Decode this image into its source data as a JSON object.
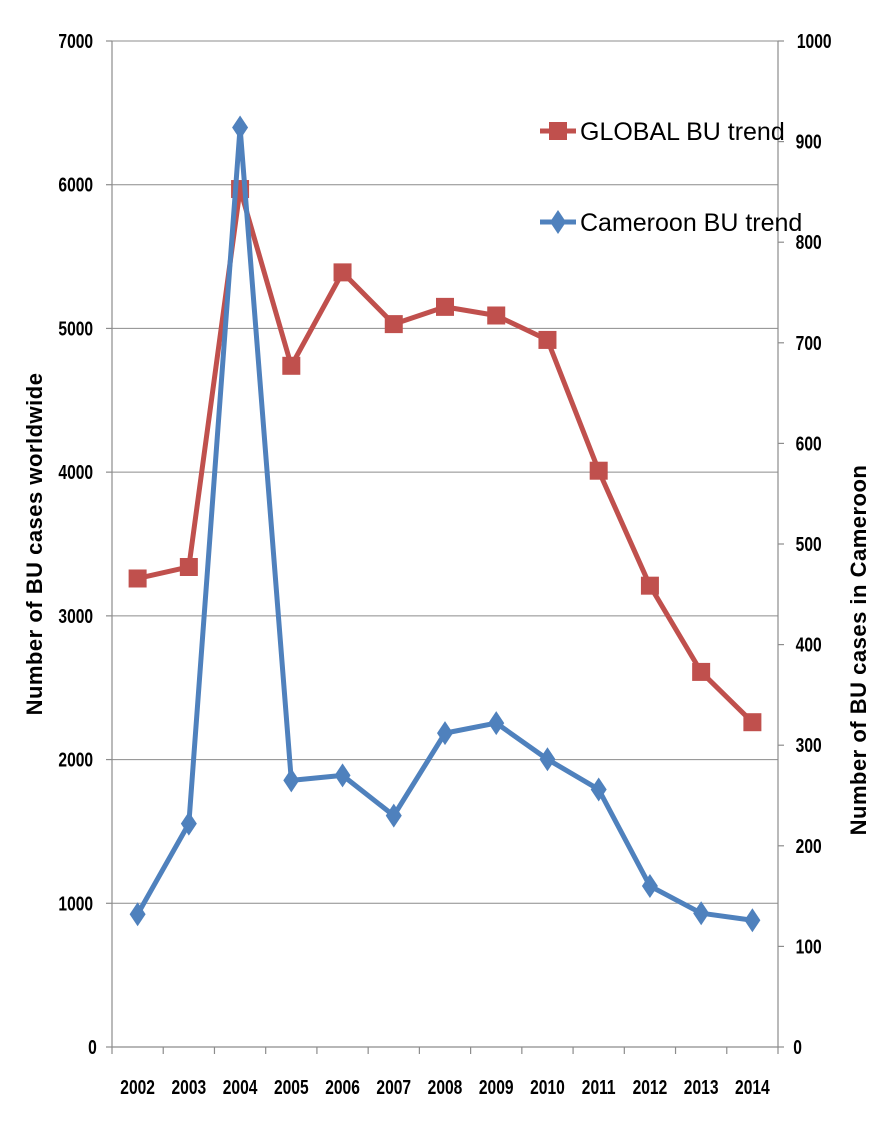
{
  "chart_data": {
    "type": "line",
    "title": "",
    "xlabel": "",
    "ylabel": "Number of BU cases worldwide",
    "y2label": "Number of BU cases in Cameroon",
    "categories": [
      "2002",
      "2003",
      "2004",
      "2005",
      "2006",
      "2007",
      "2008",
      "2009",
      "2010",
      "2011",
      "2012",
      "2013",
      "2014"
    ],
    "ylim": [
      0,
      7000
    ],
    "y2lim": [
      0,
      1000
    ],
    "yticks": [
      "0",
      "1000",
      "2000",
      "3000",
      "4000",
      "5000",
      "6000",
      "7000"
    ],
    "y2ticks": [
      "0",
      "100",
      "200",
      "300",
      "400",
      "500",
      "600",
      "700",
      "800",
      "900",
      "1000"
    ],
    "grid": true,
    "legend_position": "top-right",
    "series": [
      {
        "name": "GLOBAL BU trend",
        "axis": "left",
        "marker": "square",
        "color": "#C0504D",
        "values": [
          3260,
          3340,
          5970,
          4740,
          5390,
          5030,
          5150,
          5090,
          4920,
          4010,
          3210,
          2610,
          2260
        ]
      },
      {
        "name": "Cameroon BU trend",
        "axis": "right",
        "marker": "diamond",
        "color": "#4F81BD",
        "values": [
          132,
          222,
          914,
          265,
          270,
          230,
          312,
          322,
          286,
          256,
          160,
          133,
          126
        ]
      }
    ]
  }
}
